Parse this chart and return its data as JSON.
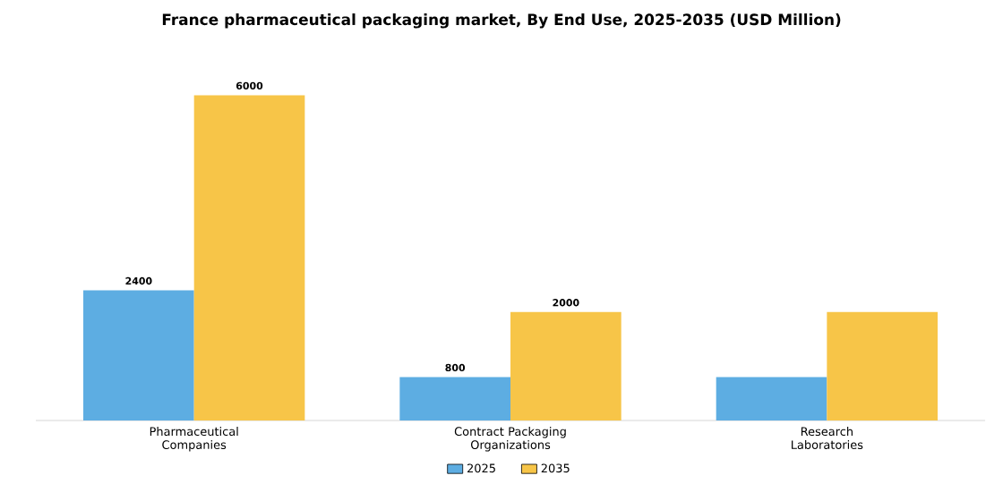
{
  "chart_data": {
    "type": "bar",
    "title": "France pharmaceutical packaging market, By End Use, 2025-2035 (USD Million)",
    "categories": [
      "Pharmaceutical Companies",
      "Contract Packaging Organizations",
      "Research Laboratories"
    ],
    "series": [
      {
        "name": "2025",
        "color": "#5dade2",
        "values": [
          2400,
          800,
          800
        ],
        "value_labels": [
          "2400",
          "800",
          null
        ]
      },
      {
        "name": "2035",
        "color": "#f7c548",
        "values": [
          6000,
          2000,
          2000
        ],
        "value_labels": [
          "6000",
          "2000",
          null
        ]
      }
    ],
    "legend": "bottom"
  }
}
